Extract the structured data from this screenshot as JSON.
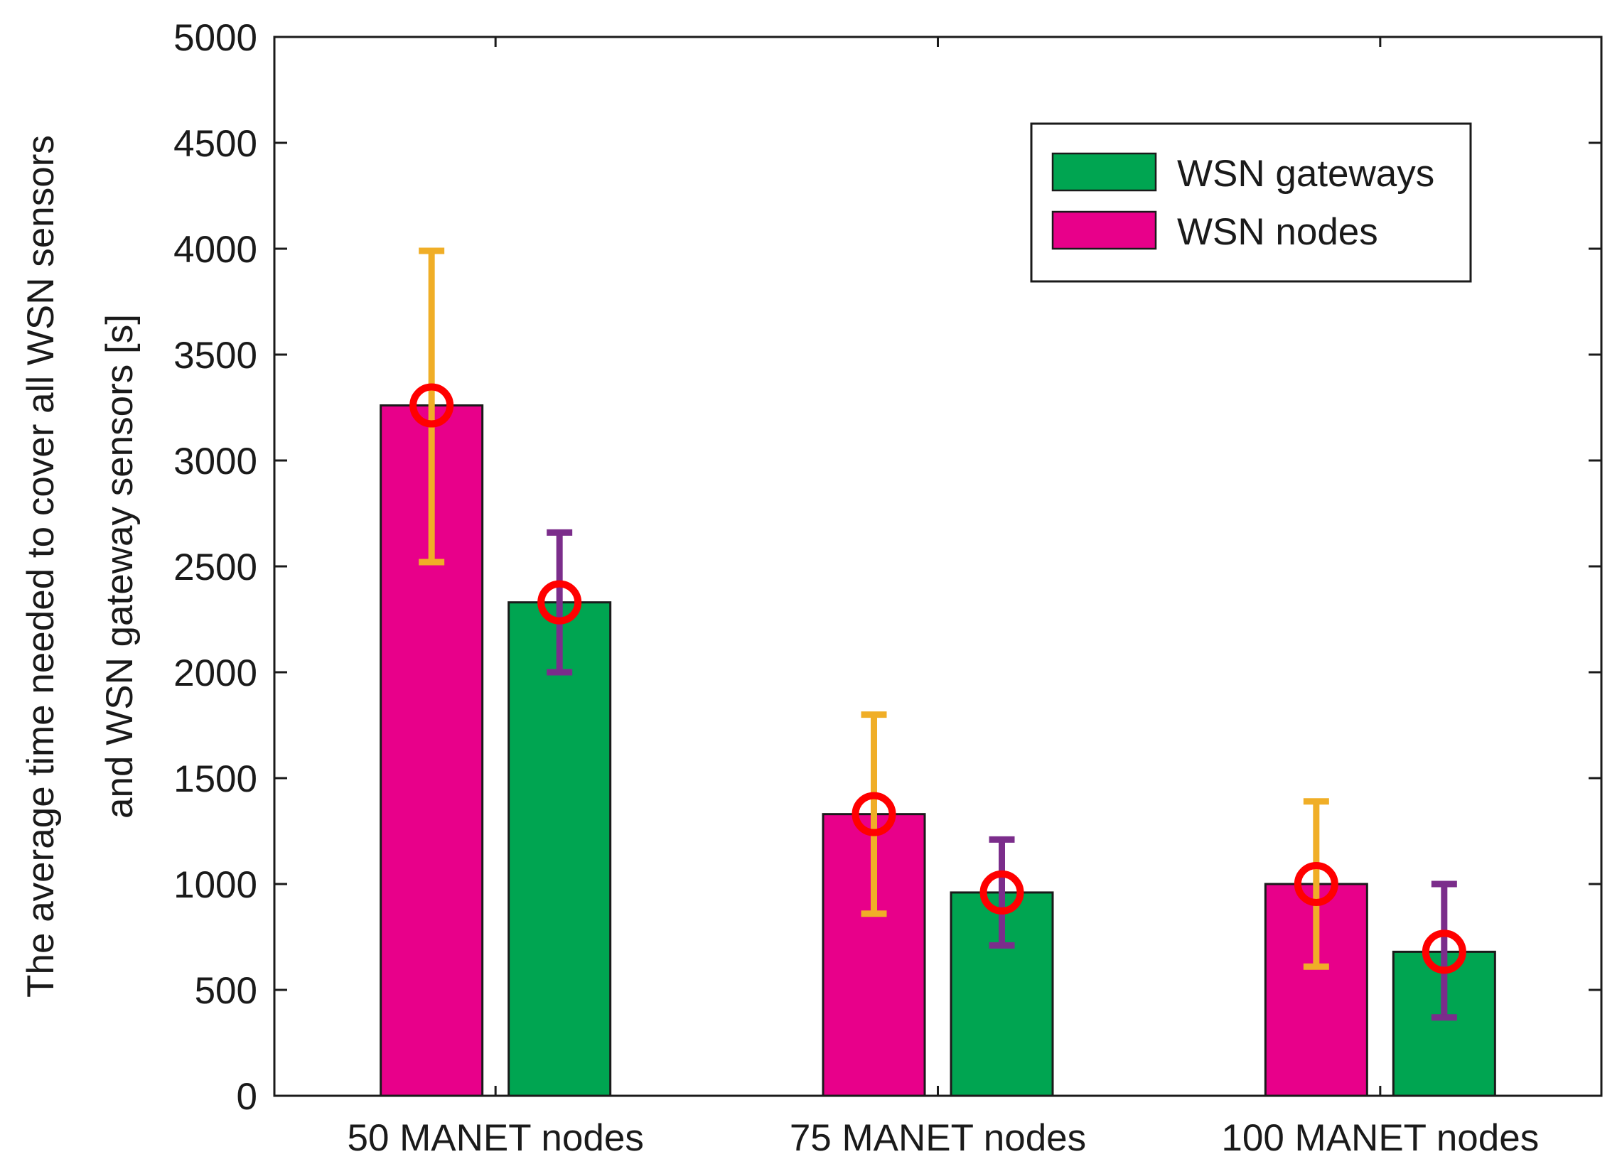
{
  "chart_data": {
    "type": "bar",
    "title": "",
    "xlabel": "",
    "ylabel_lines": [
      "The average time needed to cover all WSN sensors",
      "and WSN gateway sensors [s]"
    ],
    "categories": [
      "50 MANET nodes",
      "75 MANET nodes",
      "100 MANET nodes"
    ],
    "ylim": [
      0,
      5000
    ],
    "yticks": [
      0,
      500,
      1000,
      1500,
      2000,
      2500,
      3000,
      3500,
      4000,
      4500,
      5000
    ],
    "grid": false,
    "legend_position": "top-right",
    "legend_order": [
      "WSN gateways",
      "WSN nodes"
    ],
    "series": [
      {
        "name": "WSN nodes",
        "color": "#e8008a",
        "errorbar_color": "#f0ae27",
        "values": [
          3260,
          1330,
          1000
        ],
        "error_low": [
          2520,
          860,
          610
        ],
        "error_high": [
          3990,
          1800,
          1390
        ]
      },
      {
        "name": "WSN gateways",
        "color": "#00a551",
        "errorbar_color": "#7b2d8b",
        "values": [
          2330,
          960,
          680
        ],
        "error_low": [
          2000,
          710,
          370
        ],
        "error_high": [
          2660,
          1210,
          1000
        ]
      }
    ],
    "marker": {
      "shape": "circle-outline",
      "color": "#ff0000"
    }
  }
}
